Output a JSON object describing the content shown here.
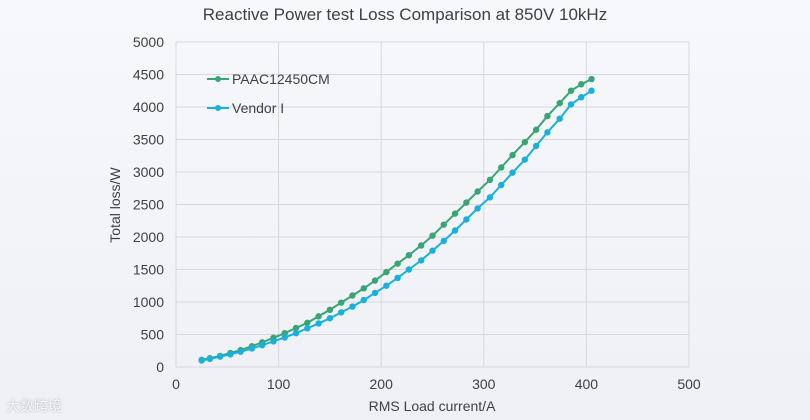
{
  "chart_data": {
    "type": "line",
    "title": "Reactive Power test Loss Comparison at 850V 10kHz",
    "xlabel": "RMS Load current/A",
    "ylabel": "Total loss/W",
    "xlim": [
      0,
      500
    ],
    "ylim": [
      0,
      5000
    ],
    "xticks": [
      "0",
      "100",
      "200",
      "300",
      "400",
      "500"
    ],
    "yticks": [
      "0",
      "500",
      "1000",
      "1500",
      "2000",
      "2500",
      "3000",
      "3500",
      "4000",
      "4500",
      "5000"
    ],
    "grid": true,
    "legend_position": "top-left",
    "series": [
      {
        "name": "PAAC12450CM",
        "color": "#3aa574",
        "x": [
          25,
          33,
          43,
          53,
          63,
          74,
          84,
          95,
          106,
          117,
          128,
          139,
          150,
          161,
          172,
          183,
          194,
          205,
          216,
          227,
          239,
          250,
          261,
          272,
          283,
          294,
          306,
          317,
          328,
          340,
          351,
          362,
          374,
          385,
          395,
          405
        ],
        "y": [
          110,
          135,
          170,
          215,
          260,
          320,
          380,
          450,
          520,
          600,
          680,
          780,
          880,
          990,
          1100,
          1210,
          1330,
          1460,
          1590,
          1720,
          1870,
          2020,
          2190,
          2360,
          2530,
          2700,
          2880,
          3070,
          3260,
          3460,
          3650,
          3860,
          4060,
          4250,
          4350,
          4430
        ]
      },
      {
        "name": "Vendor I",
        "color": "#1ab0dc",
        "x": [
          25,
          33,
          43,
          53,
          63,
          74,
          84,
          95,
          106,
          117,
          128,
          139,
          150,
          161,
          172,
          183,
          194,
          205,
          216,
          227,
          239,
          250,
          261,
          272,
          283,
          294,
          306,
          317,
          328,
          340,
          351,
          362,
          374,
          385,
          395,
          405
        ],
        "y": [
          100,
          125,
          160,
          195,
          235,
          285,
          335,
          395,
          455,
          520,
          595,
          670,
          750,
          840,
          930,
          1030,
          1140,
          1250,
          1370,
          1500,
          1640,
          1790,
          1940,
          2100,
          2270,
          2440,
          2610,
          2800,
          2990,
          3190,
          3400,
          3610,
          3820,
          4040,
          4150,
          4250
        ]
      }
    ]
  },
  "watermark": "大数跨境"
}
